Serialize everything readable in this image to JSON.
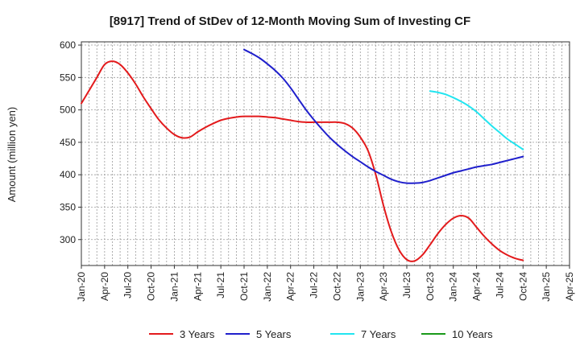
{
  "chart_data": {
    "type": "line",
    "title": "[8917]  Trend of StDev of 12-Month Moving Sum of Investing CF",
    "ylabel": "Amount (million yen)",
    "xlabel": "",
    "ylim": [
      260,
      605
    ],
    "yticks": [
      300,
      350,
      400,
      450,
      500,
      550,
      600
    ],
    "xticks": [
      "Jan-20",
      "Apr-20",
      "Jul-20",
      "Oct-20",
      "Jan-21",
      "Apr-21",
      "Jul-21",
      "Oct-21",
      "Jan-22",
      "Apr-22",
      "Jul-22",
      "Oct-22",
      "Jan-23",
      "Apr-23",
      "Jul-23",
      "Oct-23",
      "Jan-24",
      "Apr-24",
      "Jul-24",
      "Oct-24",
      "Jan-25",
      "Apr-25"
    ],
    "grid": true,
    "legend_position": "bottom",
    "series": [
      {
        "name": "3 Years",
        "color": "#e31a1c",
        "x": [
          "Jan-20",
          "Feb-20",
          "Mar-20",
          "Apr-20",
          "May-20",
          "Jun-20",
          "Jul-20",
          "Aug-20",
          "Sep-20",
          "Oct-20",
          "Nov-20",
          "Dec-20",
          "Jan-21",
          "Feb-21",
          "Mar-21",
          "Apr-21",
          "May-21",
          "Jun-21",
          "Jul-21",
          "Aug-21",
          "Sep-21",
          "Oct-21",
          "Nov-21",
          "Dec-21",
          "Jan-22",
          "Feb-22",
          "Mar-22",
          "Apr-22",
          "May-22",
          "Jun-22",
          "Jul-22",
          "Aug-22",
          "Sep-22",
          "Oct-22",
          "Nov-22",
          "Dec-22",
          "Jan-23",
          "Feb-23",
          "Mar-23",
          "Apr-23",
          "May-23",
          "Jun-23",
          "Jul-23",
          "Aug-23",
          "Sep-23",
          "Oct-23",
          "Nov-23",
          "Dec-23",
          "Jan-24",
          "Feb-24",
          "Mar-24",
          "Apr-24",
          "May-24",
          "Jun-24",
          "Jul-24",
          "Aug-24",
          "Sep-24",
          "Oct-24"
        ],
        "values": [
          510,
          530,
          550,
          570,
          575,
          570,
          557,
          540,
          520,
          502,
          485,
          472,
          462,
          457,
          458,
          466,
          473,
          479,
          484,
          487,
          489,
          490,
          490,
          490,
          489,
          488,
          486,
          484,
          482,
          481,
          481,
          481,
          481,
          481,
          479,
          472,
          458,
          437,
          400,
          352,
          312,
          284,
          269,
          267,
          276,
          292,
          309,
          323,
          333,
          337,
          333,
          319,
          305,
          293,
          283,
          276,
          271,
          268
        ]
      },
      {
        "name": "5 Years",
        "color": "#1f1fcc",
        "x": [
          "Oct-21",
          "Nov-21",
          "Dec-21",
          "Jan-22",
          "Feb-22",
          "Mar-22",
          "Apr-22",
          "May-22",
          "Jun-22",
          "Jul-22",
          "Aug-22",
          "Sep-22",
          "Oct-22",
          "Nov-22",
          "Dec-22",
          "Jan-23",
          "Feb-23",
          "Mar-23",
          "Apr-23",
          "May-23",
          "Jun-23",
          "Jul-23",
          "Aug-23",
          "Sep-23",
          "Oct-23",
          "Nov-23",
          "Dec-23",
          "Jan-24",
          "Feb-24",
          "Mar-24",
          "Apr-24",
          "May-24",
          "Jun-24",
          "Jul-24",
          "Aug-24",
          "Sep-24",
          "Oct-24"
        ],
        "values": [
          593,
          587,
          580,
          571,
          561,
          549,
          534,
          517,
          500,
          485,
          471,
          458,
          447,
          437,
          428,
          420,
          412,
          405,
          399,
          393,
          389,
          387,
          387,
          388,
          391,
          395,
          399,
          403,
          406,
          409,
          412,
          414,
          416,
          419,
          422,
          425,
          428
        ]
      },
      {
        "name": "7 Years",
        "color": "#22e5f0",
        "x": [
          "Oct-23",
          "Nov-23",
          "Dec-23",
          "Jan-24",
          "Feb-24",
          "Mar-24",
          "Apr-24",
          "May-24",
          "Jun-24",
          "Jul-24",
          "Aug-24",
          "Sep-24",
          "Oct-24"
        ],
        "values": [
          529,
          527,
          524,
          519,
          513,
          506,
          497,
          486,
          475,
          465,
          455,
          447,
          439
        ]
      },
      {
        "name": "10 Years",
        "color": "#1a9a1a",
        "x": [],
        "values": []
      }
    ]
  }
}
